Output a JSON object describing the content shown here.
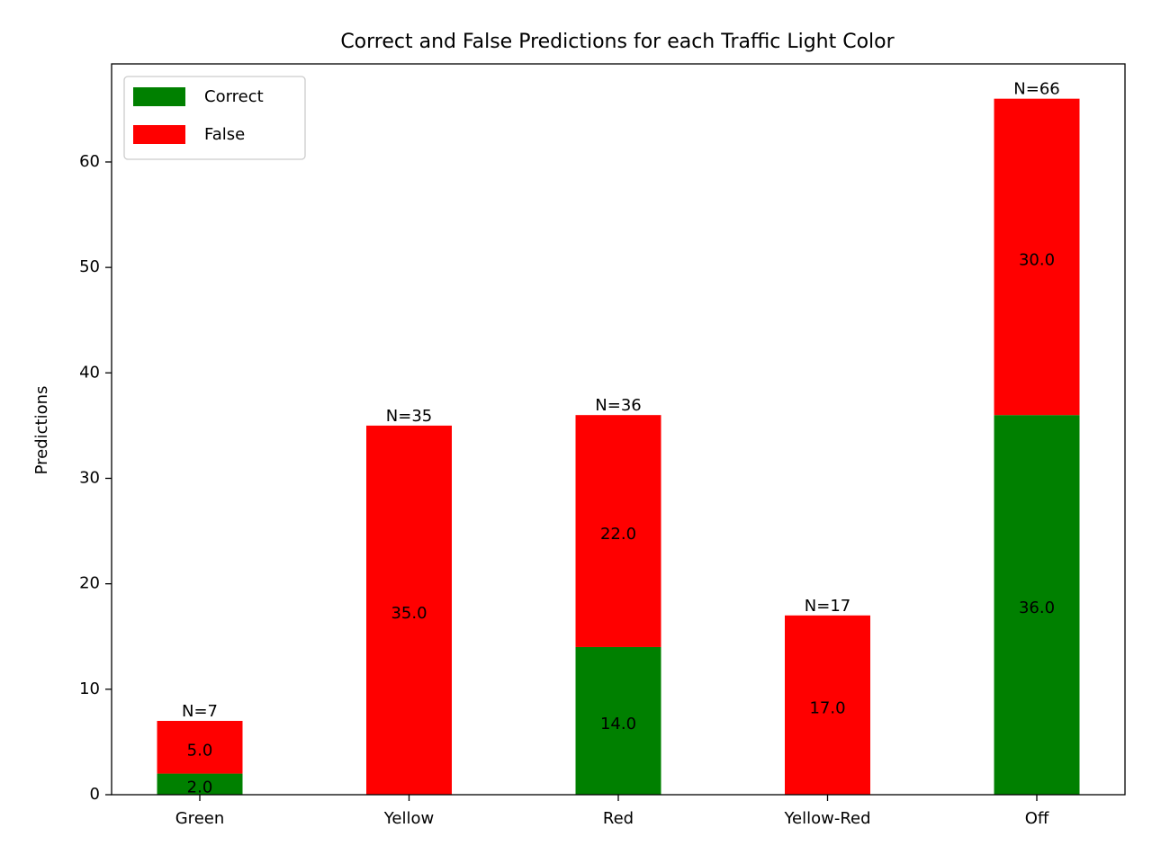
{
  "chart_data": {
    "type": "bar",
    "stacked": true,
    "title": "Correct and False Predictions for each Traffic Light Color",
    "xlabel": "",
    "ylabel": "Predictions",
    "categories": [
      "Green",
      "Yellow",
      "Red",
      "Yellow-Red",
      "Off"
    ],
    "series": [
      {
        "name": "Correct",
        "color": "#008000",
        "values": [
          2,
          0,
          14,
          0,
          36
        ]
      },
      {
        "name": "False",
        "color": "#ff0000",
        "values": [
          5,
          35,
          22,
          17,
          30
        ]
      }
    ],
    "segment_labels": [
      [
        "2.0",
        "",
        "14.0",
        "",
        "36.0"
      ],
      [
        "5.0",
        "35.0",
        "22.0",
        "17.0",
        "30.0"
      ]
    ],
    "totals": [
      "N=7",
      "N=35",
      "N=36",
      "N=17",
      "N=66"
    ],
    "ylim": [
      0,
      69.3
    ],
    "yticks": [
      0,
      10,
      20,
      30,
      40,
      50,
      60
    ],
    "grid": false,
    "legend_position": "top-left"
  }
}
